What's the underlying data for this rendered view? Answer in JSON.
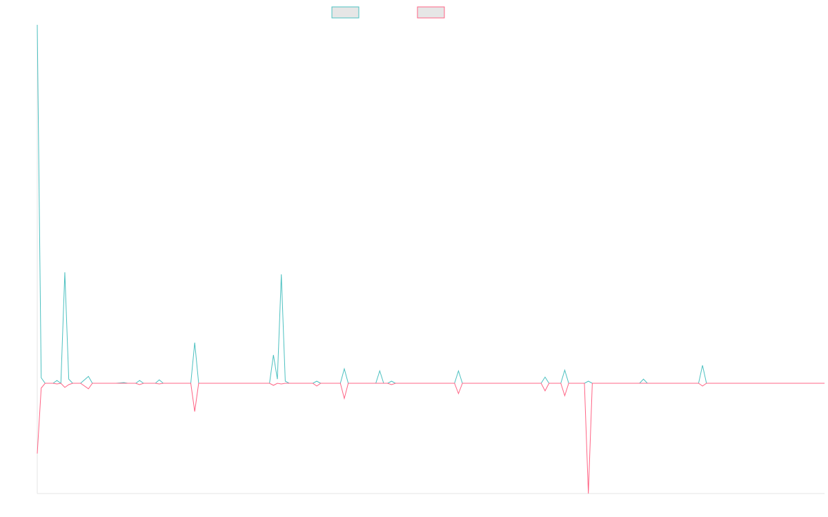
{
  "chart_data": {
    "type": "line",
    "x": [
      0,
      1,
      2,
      4,
      5,
      6,
      7,
      8,
      9,
      11,
      13,
      14,
      20,
      22,
      23,
      25,
      26,
      27,
      30,
      31,
      32,
      39,
      40,
      41,
      59,
      60,
      61,
      62,
      63,
      64,
      70,
      71,
      72,
      77,
      78,
      79,
      86,
      87,
      88,
      89,
      90,
      91,
      106,
      107,
      108,
      128,
      129,
      130,
      133,
      134,
      135,
      139,
      140,
      141,
      153,
      154,
      155,
      168,
      169,
      170,
      200
    ],
    "xlim": [
      0,
      200
    ],
    "ylim": [
      -160,
      520
    ],
    "series": [
      {
        "color": "#4bc0c0",
        "values": [
          520,
          8,
          0,
          0,
          4,
          0,
          161,
          6,
          0,
          0,
          10,
          0,
          0,
          1,
          0,
          0,
          4,
          0,
          0,
          5,
          0,
          0,
          59,
          0,
          0,
          41,
          6,
          158,
          3,
          0,
          0,
          3,
          0,
          0,
          21,
          0,
          0,
          18,
          0,
          0,
          3,
          0,
          0,
          18,
          0,
          0,
          9,
          0,
          0,
          19,
          0,
          0,
          3,
          0,
          0,
          6,
          0,
          0,
          26,
          0,
          0
        ]
      },
      {
        "color": "#ff6384",
        "values": [
          -102,
          -7,
          0,
          0,
          -1,
          0,
          -6,
          -2,
          0,
          0,
          -8,
          0,
          0,
          0,
          0,
          0,
          -2,
          0,
          0,
          -1,
          0,
          0,
          -41,
          0,
          0,
          -3,
          0,
          -1,
          0,
          0,
          0,
          -4,
          0,
          0,
          -22,
          0,
          0,
          0,
          0,
          0,
          -2,
          0,
          0,
          -15,
          0,
          0,
          -11,
          0,
          0,
          -18,
          0,
          0,
          -160,
          0,
          0,
          0,
          0,
          0,
          -4,
          0,
          0
        ]
      }
    ]
  }
}
